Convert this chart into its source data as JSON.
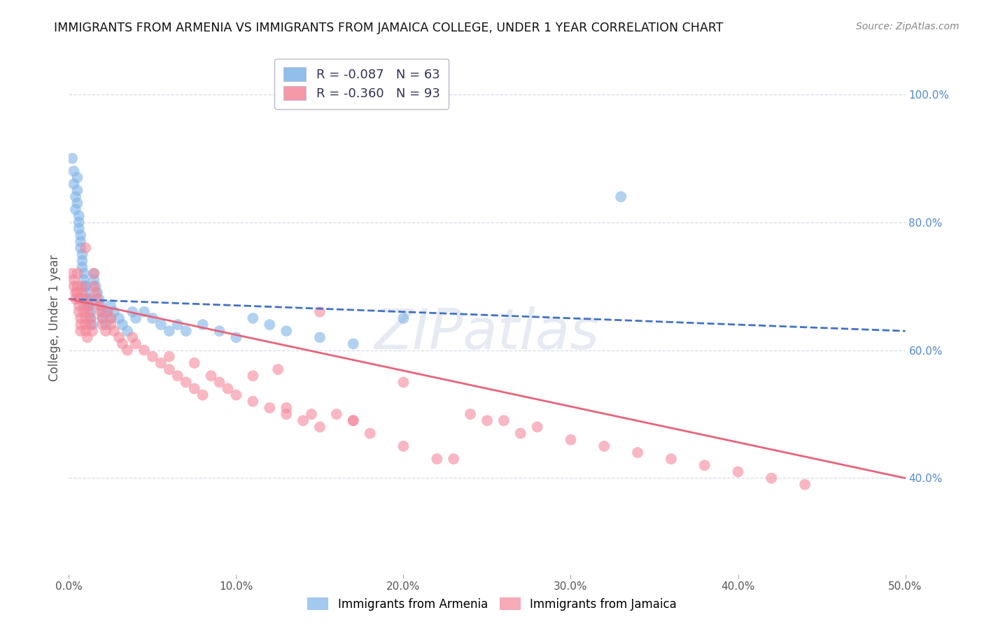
{
  "title": "IMMIGRANTS FROM ARMENIA VS IMMIGRANTS FROM JAMAICA COLLEGE, UNDER 1 YEAR CORRELATION CHART",
  "source": "Source: ZipAtlas.com",
  "ylabel": "College, Under 1 year",
  "xlim": [
    0.0,
    0.5
  ],
  "ylim": [
    0.25,
    1.05
  ],
  "xtick_labels": [
    "0.0%",
    "10.0%",
    "20.0%",
    "30.0%",
    "40.0%",
    "50.0%"
  ],
  "xtick_vals": [
    0.0,
    0.1,
    0.2,
    0.3,
    0.4,
    0.5
  ],
  "ytick_labels_right": [
    "100.0%",
    "80.0%",
    "60.0%",
    "40.0%"
  ],
  "ytick_vals_right": [
    1.0,
    0.8,
    0.6,
    0.4
  ],
  "armenia_R": -0.087,
  "armenia_N": 63,
  "jamaica_R": -0.36,
  "jamaica_N": 93,
  "color_armenia": "#7EB3E8",
  "color_jamaica": "#F4879A",
  "color_armenia_line": "#4472C4",
  "color_jamaica_line": "#E8637A",
  "watermark": "ZIPatlas",
  "armenia_scatter_x": [
    0.002,
    0.003,
    0.003,
    0.004,
    0.004,
    0.005,
    0.005,
    0.005,
    0.006,
    0.006,
    0.006,
    0.007,
    0.007,
    0.007,
    0.008,
    0.008,
    0.008,
    0.009,
    0.009,
    0.01,
    0.01,
    0.01,
    0.011,
    0.011,
    0.012,
    0.012,
    0.013,
    0.013,
    0.014,
    0.015,
    0.015,
    0.016,
    0.017,
    0.018,
    0.019,
    0.02,
    0.02,
    0.022,
    0.023,
    0.025,
    0.025,
    0.027,
    0.03,
    0.032,
    0.035,
    0.038,
    0.04,
    0.045,
    0.05,
    0.055,
    0.06,
    0.065,
    0.07,
    0.08,
    0.09,
    0.1,
    0.11,
    0.12,
    0.13,
    0.15,
    0.17,
    0.2,
    0.33
  ],
  "armenia_scatter_y": [
    0.9,
    0.88,
    0.86,
    0.84,
    0.82,
    0.87,
    0.85,
    0.83,
    0.81,
    0.8,
    0.79,
    0.78,
    0.77,
    0.76,
    0.75,
    0.74,
    0.73,
    0.72,
    0.71,
    0.7,
    0.7,
    0.69,
    0.68,
    0.67,
    0.68,
    0.67,
    0.66,
    0.65,
    0.64,
    0.72,
    0.71,
    0.7,
    0.69,
    0.68,
    0.67,
    0.66,
    0.65,
    0.64,
    0.66,
    0.65,
    0.67,
    0.66,
    0.65,
    0.64,
    0.63,
    0.66,
    0.65,
    0.66,
    0.65,
    0.64,
    0.63,
    0.64,
    0.63,
    0.64,
    0.63,
    0.62,
    0.65,
    0.64,
    0.63,
    0.62,
    0.61,
    0.65,
    0.84
  ],
  "jamaica_scatter_x": [
    0.002,
    0.003,
    0.003,
    0.004,
    0.004,
    0.005,
    0.005,
    0.005,
    0.006,
    0.006,
    0.006,
    0.007,
    0.007,
    0.007,
    0.008,
    0.008,
    0.008,
    0.009,
    0.009,
    0.01,
    0.01,
    0.01,
    0.011,
    0.011,
    0.012,
    0.012,
    0.013,
    0.013,
    0.014,
    0.015,
    0.015,
    0.016,
    0.017,
    0.018,
    0.019,
    0.02,
    0.02,
    0.022,
    0.023,
    0.025,
    0.025,
    0.027,
    0.03,
    0.032,
    0.035,
    0.038,
    0.04,
    0.045,
    0.05,
    0.055,
    0.06,
    0.065,
    0.07,
    0.075,
    0.08,
    0.085,
    0.09,
    0.095,
    0.1,
    0.11,
    0.12,
    0.13,
    0.14,
    0.15,
    0.16,
    0.17,
    0.18,
    0.2,
    0.22,
    0.24,
    0.26,
    0.28,
    0.3,
    0.32,
    0.34,
    0.36,
    0.38,
    0.4,
    0.42,
    0.44,
    0.2,
    0.23,
    0.15,
    0.17,
    0.25,
    0.27,
    0.13,
    0.145,
    0.11,
    0.125,
    0.06,
    0.075,
    0.01
  ],
  "jamaica_scatter_y": [
    0.72,
    0.71,
    0.7,
    0.69,
    0.68,
    0.72,
    0.7,
    0.69,
    0.68,
    0.67,
    0.66,
    0.65,
    0.64,
    0.63,
    0.7,
    0.69,
    0.68,
    0.67,
    0.66,
    0.65,
    0.64,
    0.63,
    0.62,
    0.68,
    0.67,
    0.66,
    0.65,
    0.64,
    0.63,
    0.72,
    0.7,
    0.69,
    0.68,
    0.67,
    0.66,
    0.65,
    0.64,
    0.63,
    0.66,
    0.65,
    0.64,
    0.63,
    0.62,
    0.61,
    0.6,
    0.62,
    0.61,
    0.6,
    0.59,
    0.58,
    0.57,
    0.56,
    0.55,
    0.54,
    0.53,
    0.56,
    0.55,
    0.54,
    0.53,
    0.52,
    0.51,
    0.5,
    0.49,
    0.48,
    0.5,
    0.49,
    0.47,
    0.45,
    0.43,
    0.5,
    0.49,
    0.48,
    0.46,
    0.45,
    0.44,
    0.43,
    0.42,
    0.41,
    0.4,
    0.39,
    0.55,
    0.43,
    0.66,
    0.49,
    0.49,
    0.47,
    0.51,
    0.5,
    0.56,
    0.57,
    0.59,
    0.58,
    0.76
  ],
  "armenia_trend_x": [
    0.0,
    0.5
  ],
  "armenia_trend_y": [
    0.68,
    0.63
  ],
  "jamaica_trend_x": [
    0.0,
    0.5
  ],
  "jamaica_trend_y": [
    0.68,
    0.4
  ],
  "grid_color": "#D8DCE8",
  "background_color": "#FFFFFF"
}
